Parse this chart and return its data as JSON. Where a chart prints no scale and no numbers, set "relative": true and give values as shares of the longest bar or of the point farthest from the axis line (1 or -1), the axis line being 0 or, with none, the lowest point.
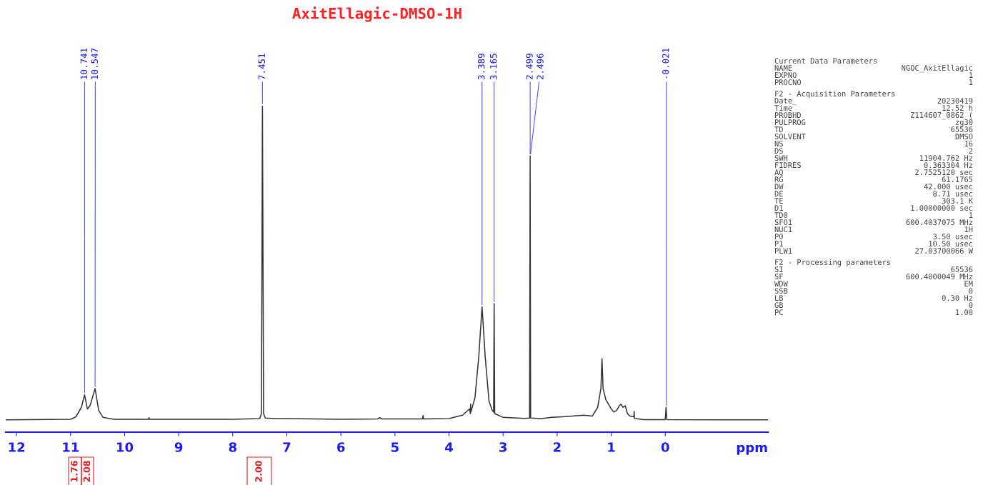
{
  "chart_data": {
    "type": "line",
    "title": "AxitEllagic-DMSO-1H",
    "xlabel": "ppm",
    "relative": true,
    "xlim": [
      12.2,
      -1.9
    ],
    "xticks": [
      12,
      11,
      10,
      9,
      8,
      7,
      6,
      5,
      4,
      3,
      2,
      1,
      0
    ],
    "grid": false,
    "legend": false,
    "marker": "none",
    "line_style": "solid",
    "series": [
      {
        "color": "#333333",
        "x": [
          12.2,
          11.0,
          10.9,
          10.8,
          10.741,
          10.69,
          10.64,
          10.547,
          10.48,
          10.4,
          10.2,
          9.56,
          9.55,
          9.54,
          8.0,
          7.5,
          7.47,
          7.451,
          7.43,
          7.4,
          7.2,
          7.0,
          6.0,
          5.32,
          5.28,
          5.24,
          4.49,
          4.48,
          4.47,
          4.0,
          3.75,
          3.62,
          3.605,
          3.6,
          3.595,
          3.52,
          3.45,
          3.389,
          3.33,
          3.26,
          3.2,
          3.175,
          3.165,
          3.155,
          3.0,
          2.6,
          2.51,
          2.499,
          2.49,
          2.3,
          2.1,
          1.9,
          1.5,
          1.35,
          1.25,
          1.19,
          1.17,
          1.15,
          1.1,
          1.0,
          0.95,
          0.9,
          0.85,
          0.82,
          0.78,
          0.74,
          0.7,
          0.65,
          0.58,
          0.575,
          0.57,
          0.4,
          0.0,
          -0.015,
          -0.03,
          -1.9
        ],
        "values": [
          0,
          0.002,
          0.01,
          0.04,
          0.08,
          0.035,
          0.045,
          0.1,
          0.03,
          0.008,
          0.002,
          0.002,
          0.007,
          0.002,
          0.002,
          0.004,
          0.02,
          1.0,
          0.02,
          0.006,
          0.004,
          0.004,
          0.002,
          0.003,
          0.007,
          0.003,
          0.003,
          0.014,
          0.003,
          0.004,
          0.015,
          0.035,
          0.02,
          0.05,
          0.025,
          0.07,
          0.2,
          0.36,
          0.2,
          0.06,
          0.03,
          0.025,
          0.37,
          0.02,
          0.008,
          0.005,
          0.006,
          0.84,
          0.006,
          0.004,
          0.008,
          0.01,
          0.015,
          0.012,
          0.04,
          0.1,
          0.195,
          0.1,
          0.065,
          0.035,
          0.025,
          0.03,
          0.045,
          0.05,
          0.04,
          0.045,
          0.02,
          0.012,
          0.01,
          0.027,
          0.005,
          0.001,
          0.001,
          0.04,
          0.001,
          0
        ]
      }
    ],
    "annotations": [
      {
        "text": "10.741",
        "x": 10.741,
        "y": 0.08
      },
      {
        "text": "10.547",
        "x": 10.547,
        "y": 0.1
      },
      {
        "text": "7.451",
        "x": 7.451,
        "y": 1.0
      },
      {
        "text": "3.389",
        "x": 3.389,
        "y": 0.36
      },
      {
        "text": "3.165",
        "x": 3.165,
        "y": 0.37
      },
      {
        "text": "2.499",
        "x": 2.499,
        "y": 0.84
      },
      {
        "text": "2.496",
        "x": 2.496,
        "y": 0.84
      },
      {
        "text": "-0.021",
        "x": -0.021,
        "y": 0.04
      },
      "1.76",
      "2.08",
      "2.00",
      "Current Data Parameters",
      "NAME\tNGOC_AxitEllagic",
      "EXPNO\t1",
      "PROCNO\t1",
      "F2 - Acquisition Parameters",
      "Date_\t20230419",
      "Time\t12.52 h",
      "PROBHD\tZ114607_0862 (",
      "PULPROG\tzg30",
      "TD\t65536",
      "SOLVENT\tDMSO",
      "NS\t16",
      "DS\t2",
      "SWH\t11904.762 Hz",
      "FIDRES\t0.363304 Hz",
      "AQ\t2.7525120 sec",
      "RG\t61.1765",
      "DW\t42.000 usec",
      "DE\t8.71 usec",
      "TE\t303.1 K",
      "D1\t1.00000000 sec",
      "TD0\t1",
      "SFO1\t600.4037075 MHz",
      "NUC1\t1H",
      "P0\t3.50 usec",
      "P1\t10.50 usec",
      "PLW1\t27.03700066 W",
      "F2 - Processing parameters",
      "SI\t65536",
      "SF\t600.4000049 MHz",
      "WDW\tEM",
      "SSB\t0",
      "LB\t0.30 Hz",
      "GB\t0",
      "PC\t1.00"
    ]
  }
}
